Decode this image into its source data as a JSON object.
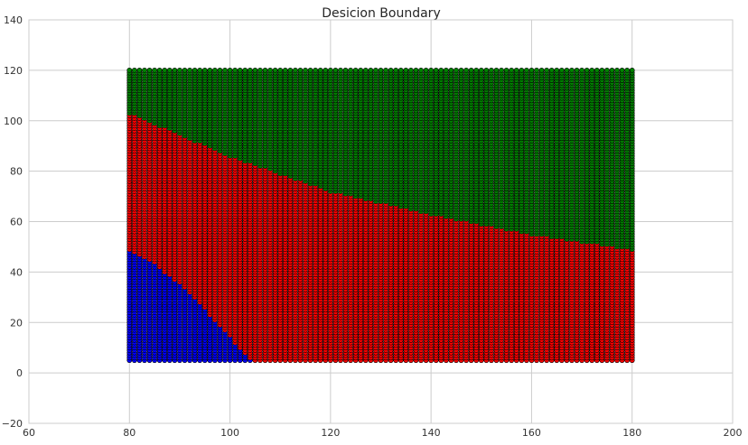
{
  "chart_data": {
    "type": "scatter",
    "title": "Desicion Boundary",
    "xlabel": "",
    "ylabel": "",
    "xlim": [
      60,
      200
    ],
    "ylim": [
      -20,
      140
    ],
    "x_ticks": [
      "60",
      "80",
      "100",
      "120",
      "140",
      "160",
      "180",
      "200"
    ],
    "y_ticks": [
      "−20",
      "0",
      "20",
      "40",
      "60",
      "80",
      "100",
      "120",
      "140"
    ],
    "grid": true,
    "legend": "none",
    "grid_x": {
      "start": 80,
      "end": 180,
      "step": 1
    },
    "grid_y": {
      "start": 5,
      "end": 120,
      "step": 1
    },
    "marker_edge_color": "#000000",
    "series": [
      {
        "color": "#0000ff",
        "rule": "x=80,y≤48 to x=104,y≈5 (curved boundary)"
      },
      {
        "color": "#ff0000",
        "rule": "between blue and green regions"
      },
      {
        "color": "#008000",
        "rule": "above line from (80,103) to (180,49)"
      }
    ],
    "boundaries": {
      "green_red": [
        [
          80,
          103
        ],
        [
          100,
          86
        ],
        [
          120,
          72
        ],
        [
          140,
          63
        ],
        [
          160,
          55
        ],
        [
          180,
          49
        ]
      ],
      "blue_red": [
        [
          80,
          48
        ],
        [
          85,
          43
        ],
        [
          90,
          35
        ],
        [
          95,
          25
        ],
        [
          100,
          14
        ],
        [
          104,
          5
        ]
      ]
    }
  }
}
